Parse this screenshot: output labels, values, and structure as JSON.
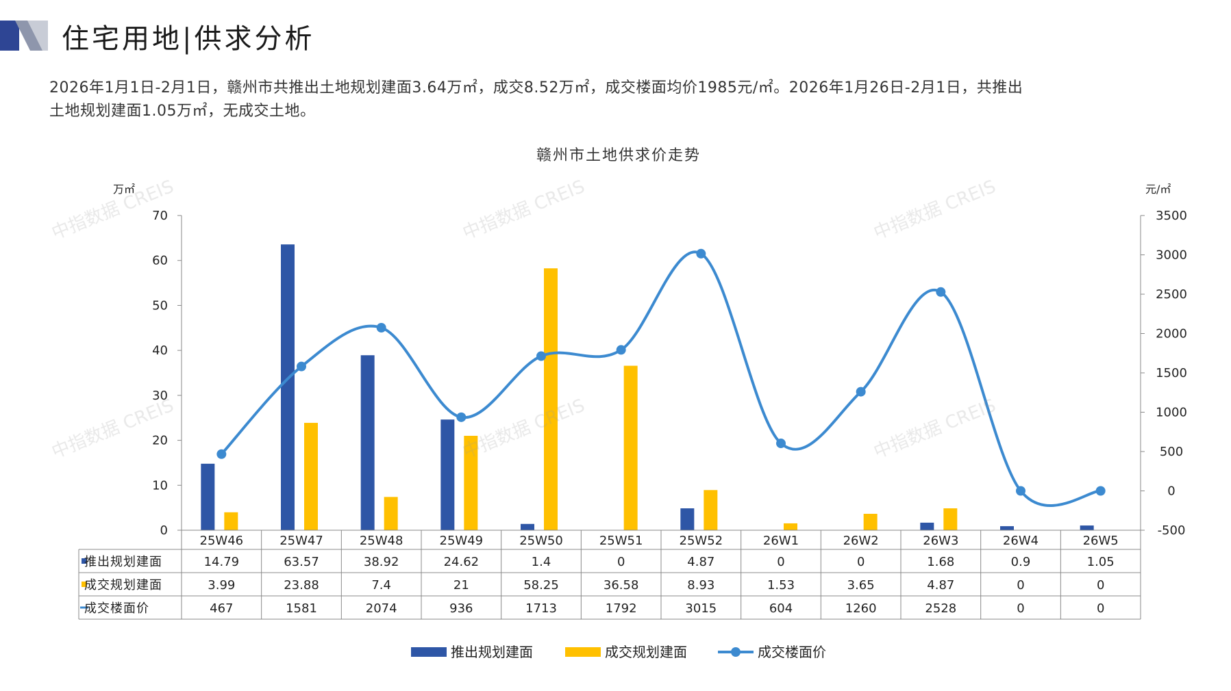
{
  "page": {
    "title": "住宅用地|供求分析",
    "summary_line1": "2026年1月1日-2月1日，赣州市共推出土地规划建面3.64万㎡，成交8.52万㎡，成交楼面均价1985元/㎡。2026年1月26日-2月1日，共推出",
    "summary_line2": "土地规划建面1.05万㎡，无成交土地。",
    "watermark": "中指数据 CREIS"
  },
  "colors": {
    "launched": "#2E56A6",
    "traded": "#FFC000",
    "price": "#3C8AD0",
    "grid": "#888888",
    "text": "#222222",
    "logo_dark": "#2E4594",
    "logo_light": "#C8CCD6"
  },
  "chart_data": {
    "type": "bar",
    "title": "赣州市土地供求价走势",
    "ylabel_left": "万㎡",
    "ylabel_right": "元/㎡",
    "ylim_left": [
      0,
      70
    ],
    "ylim_right": [
      -500,
      3500
    ],
    "yticks_left": [
      0,
      10,
      20,
      30,
      40,
      50,
      60,
      70
    ],
    "yticks_right": [
      -500,
      0,
      500,
      1000,
      1500,
      2000,
      2500,
      3000,
      3500
    ],
    "categories": [
      "25W46",
      "25W47",
      "25W48",
      "25W49",
      "25W50",
      "25W51",
      "25W52",
      "26W1",
      "26W2",
      "26W3",
      "26W4",
      "26W5"
    ],
    "series": [
      {
        "name": "推出规划建面",
        "kind": "bar",
        "axis": "left",
        "values": [
          14.79,
          63.57,
          38.92,
          24.62,
          1.4,
          0,
          4.87,
          0,
          0,
          1.68,
          0.9,
          1.05
        ],
        "labels": [
          "14.79",
          "63.57",
          "38.92",
          "24.62",
          "1.4",
          "0",
          "4.87",
          "0",
          "0",
          "1.68",
          "0.9",
          "1.05"
        ]
      },
      {
        "name": "成交规划建面",
        "kind": "bar",
        "axis": "left",
        "values": [
          3.99,
          23.88,
          7.4,
          21,
          58.25,
          36.58,
          8.93,
          1.53,
          3.65,
          4.87,
          0,
          0
        ],
        "labels": [
          "3.99",
          "23.88",
          "7.4",
          "21",
          "58.25",
          "36.58",
          "8.93",
          "1.53",
          "3.65",
          "4.87",
          "0",
          "0"
        ]
      },
      {
        "name": "成交楼面价",
        "kind": "line",
        "axis": "right",
        "values": [
          467,
          1581,
          2074,
          936,
          1713,
          1792,
          3015,
          604,
          1260,
          2528,
          0,
          0
        ],
        "labels": [
          "467",
          "1581",
          "2074",
          "936",
          "1713",
          "1792",
          "3015",
          "604",
          "1260",
          "2528",
          "0",
          "0"
        ]
      }
    ],
    "legend": "bottom",
    "grid": false,
    "data_table": true
  }
}
